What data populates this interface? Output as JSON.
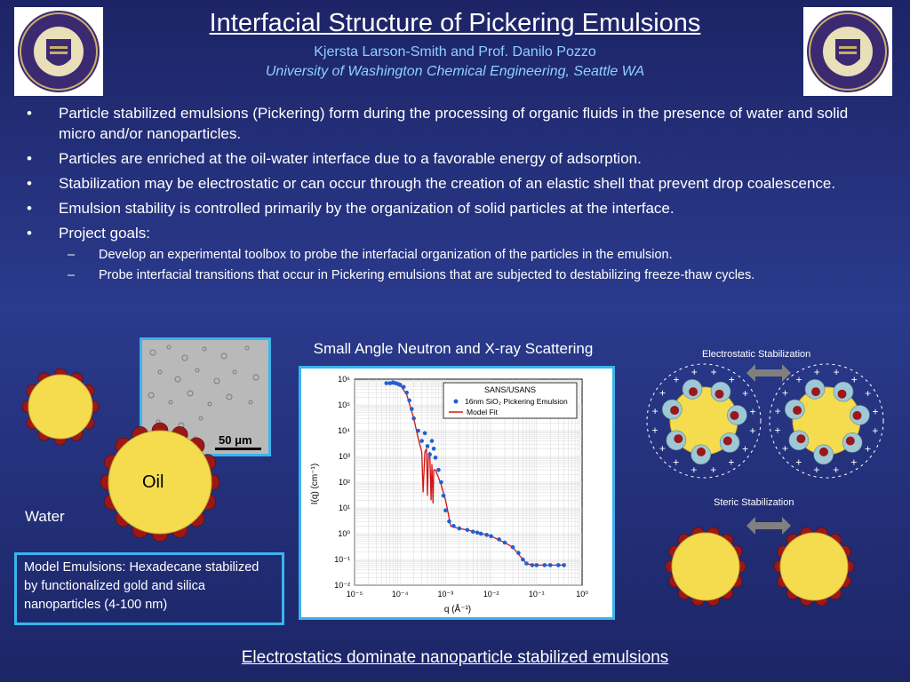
{
  "header": {
    "title": "Interfacial Structure of Pickering Emulsions",
    "authors": "Kjersta Larson-Smith and Prof. Danilo Pozzo",
    "affiliation": "University of Washington Chemical Engineering, Seattle WA",
    "seal_text": "UNIVERSITY·OF·WASHINGTON·1861"
  },
  "bullets": [
    "Particle stabilized emulsions (Pickering) form during the processing of organic fluids in the presence of water and solid micro and/or nanoparticles.",
    "Particles are enriched at the oil-water interface due to a favorable energy of adsorption.",
    "Stabilization may be electrostatic or can occur through the creation of an elastic shell that prevent drop coalescence.",
    "Emulsion stability is controlled primarily by the organization of solid particles at the interface.",
    "Project goals:"
  ],
  "sub_bullets": [
    "Develop an experimental toolbox to probe the interfacial organization of the particles in the emulsion.",
    "Probe interfacial transitions that occur in Pickering emulsions that are subjected to destabilizing freeze-thaw cycles."
  ],
  "figure_left": {
    "scale_bar": "50 μm",
    "oil_label": "Oil",
    "water_label": "Water",
    "caption": "Model Emulsions: Hexadecane stabilized by functionalized gold and silica nanoparticles (4-100 nm)"
  },
  "scattering_title": "Small Angle Neutron and X-ray Scattering",
  "right_diagram": {
    "electrostatic_label": "Electrostatic Stabilization",
    "steric_label": "Steric Stabilization"
  },
  "conclusion": "Electrostatics dominate nanoparticle stabilized emulsions",
  "chart_data": {
    "type": "scatter",
    "xlabel": "q (Å⁻¹)",
    "ylabel": "I(q) (cm⁻¹)",
    "x_scale": "log",
    "y_scale": "log",
    "xlim": [
      1e-05,
      1
    ],
    "ylim": [
      0.01,
      1000000
    ],
    "x_ticks": [
      "10⁻⁵",
      "10⁻⁴",
      "10⁻³",
      "10⁻²",
      "10⁻¹",
      "10⁰"
    ],
    "y_ticks": [
      "10⁻²",
      "10⁻¹",
      "10⁰",
      "10¹",
      "10²",
      "10³",
      "10⁴",
      "10⁵",
      "10⁶"
    ],
    "legend_title": "SANS/USANS",
    "legend_position": "top-right",
    "grid": true,
    "series": [
      {
        "name": "16nm SiO₂ Pickering Emulsion",
        "style": "markers",
        "color": "#1f5fd6",
        "x": [
          5e-05,
          6e-05,
          7e-05,
          8e-05,
          9e-05,
          0.0001,
          0.00012,
          0.00014,
          0.00016,
          0.00018,
          0.0002,
          0.00025,
          0.0003,
          0.00035,
          0.0004,
          0.00045,
          0.0005,
          0.00055,
          0.0006,
          0.0007,
          0.0008,
          0.0009,
          0.001,
          0.0012,
          0.0015,
          0.002,
          0.003,
          0.004,
          0.005,
          0.006,
          0.008,
          0.01,
          0.015,
          0.02,
          0.03,
          0.04,
          0.05,
          0.06,
          0.08,
          0.1,
          0.15,
          0.2,
          0.3,
          0.4
        ],
        "y": [
          700000,
          700000,
          750000,
          700000,
          650000,
          600000,
          500000,
          300000,
          150000,
          70000,
          30000,
          10000,
          4000,
          8000,
          2500,
          1200,
          4000,
          2000,
          900,
          300,
          100,
          30,
          8,
          3,
          2,
          1.6,
          1.4,
          1.2,
          1.1,
          1.0,
          0.9,
          0.8,
          0.6,
          0.45,
          0.3,
          0.18,
          0.1,
          0.07,
          0.06,
          0.06,
          0.06,
          0.06,
          0.06,
          0.06
        ]
      },
      {
        "name": "Model Fit",
        "style": "line",
        "color": "#d41414",
        "x": [
          5e-05,
          0.0001,
          0.00014,
          0.0002,
          0.00025,
          0.0003,
          0.00032,
          0.00035,
          0.00038,
          0.0004,
          0.00042,
          0.00045,
          0.00048,
          0.0005,
          0.00053,
          0.00055,
          0.0006,
          0.0007,
          0.0008,
          0.001,
          0.0013,
          0.0015,
          0.002,
          0.003,
          0.005,
          0.008,
          0.01,
          0.02,
          0.03,
          0.05,
          0.06,
          0.08,
          0.1,
          0.2,
          0.4
        ],
        "y": [
          700000,
          600000,
          250000,
          30000,
          5000,
          1500,
          40,
          1500,
          2000,
          30,
          1000,
          1500,
          20,
          500,
          15,
          300,
          300,
          150,
          80,
          20,
          2,
          1.8,
          1.6,
          1.4,
          1.1,
          0.9,
          0.8,
          0.45,
          0.3,
          0.1,
          0.07,
          0.06,
          0.06,
          0.06,
          0.06
        ]
      }
    ]
  },
  "colors": {
    "background_top": "#1d2466",
    "background_mid": "#2a3a8c",
    "accent_blue": "#3ab4ee",
    "subtitle_blue": "#8fd0ff",
    "oil_yellow": "#f5dc4f",
    "particle_red": "#9a1818",
    "silica_blue": "#9fc8d6"
  }
}
